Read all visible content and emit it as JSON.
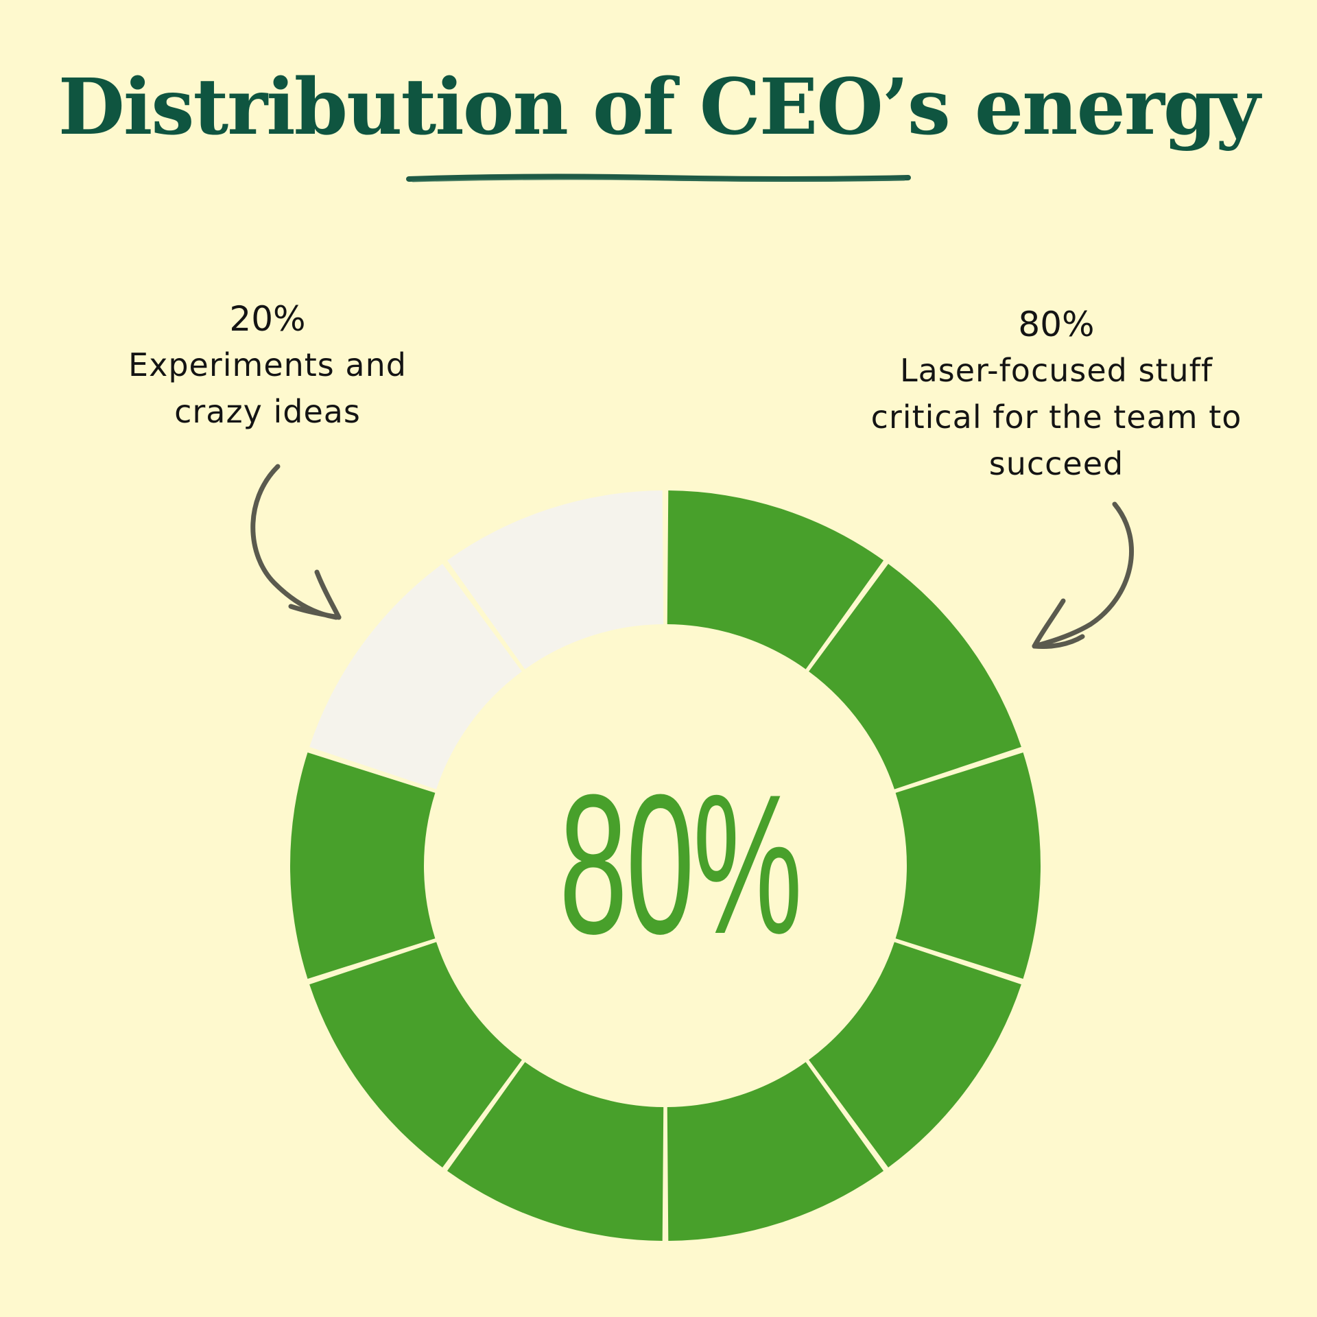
{
  "title": "Distribution of CEO’s energy",
  "center_label": "80%",
  "annotations": {
    "left": {
      "percent": "20%",
      "line1": "Experiments and",
      "line2": "crazy ideas"
    },
    "right": {
      "percent": "80%",
      "line1": "Laser-focused stuff",
      "line2": "critical for the team to",
      "line3": "succeed"
    }
  },
  "colors": {
    "background": "#fef9ce",
    "title": "#0f5540",
    "filled": "#48a02b",
    "empty": "#f5f3ec",
    "arrow": "#5a5a4e"
  },
  "chart_data": {
    "type": "pie",
    "categories": [
      "Laser-focused stuff critical for the team to succeed",
      "Experiments and crazy ideas"
    ],
    "values": [
      80,
      20
    ],
    "segments_total": 10,
    "segments_filled": 8
  }
}
